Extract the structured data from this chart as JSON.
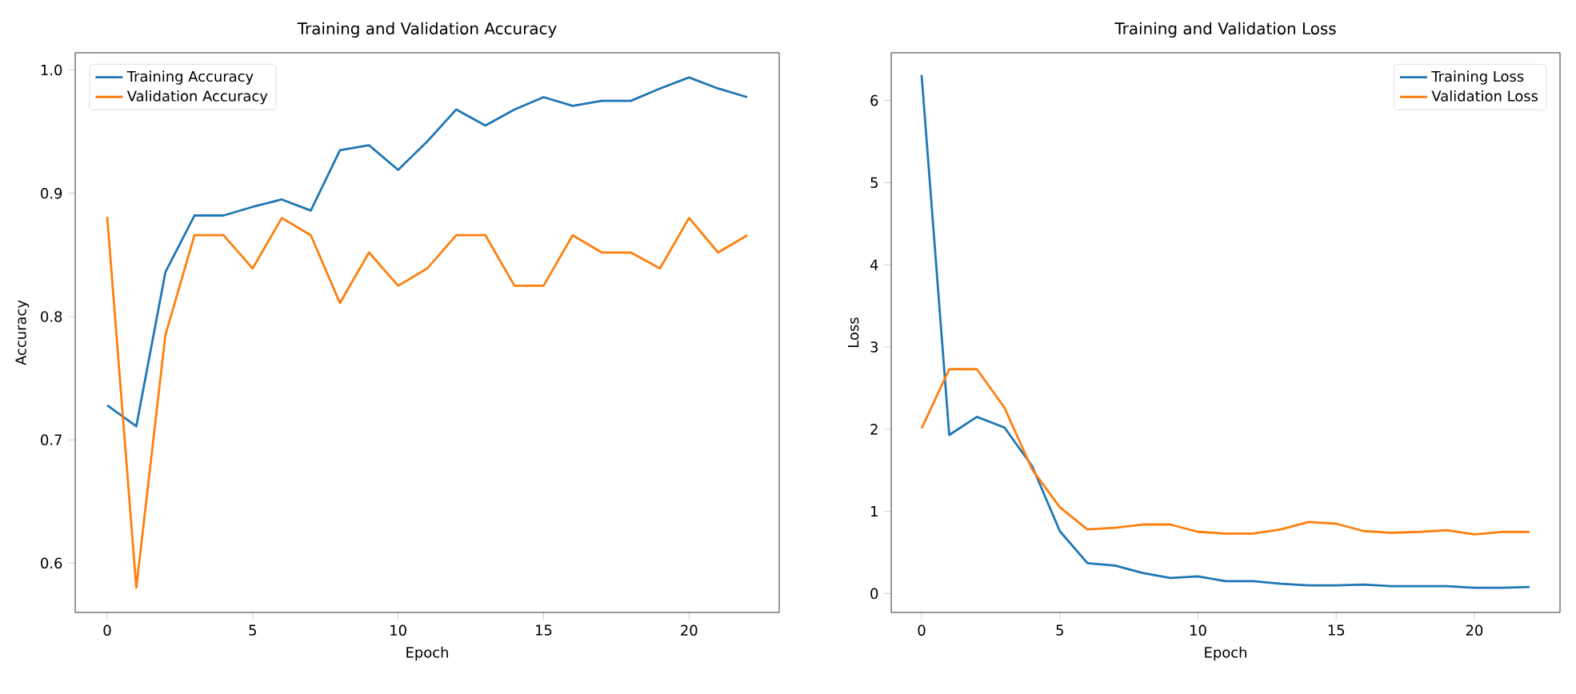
{
  "chart_data": [
    {
      "type": "line",
      "title": "Training and Validation Accuracy",
      "xlabel": "Epoch",
      "ylabel": "Accuracy",
      "x": [
        0,
        1,
        2,
        3,
        4,
        5,
        6,
        7,
        8,
        9,
        10,
        11,
        12,
        13,
        14,
        15,
        16,
        17,
        18,
        19,
        20,
        21,
        22
      ],
      "series": [
        {
          "name": "Training Accuracy",
          "color": "#1f77b4",
          "values": [
            0.728,
            0.711,
            0.836,
            0.882,
            0.882,
            0.889,
            0.895,
            0.886,
            0.935,
            0.939,
            0.919,
            0.942,
            0.968,
            0.955,
            0.968,
            0.978,
            0.971,
            0.975,
            0.975,
            0.985,
            0.994,
            0.985,
            0.978
          ]
        },
        {
          "name": "Validation Accuracy",
          "color": "#ff7f0e",
          "values": [
            0.881,
            0.58,
            0.785,
            0.866,
            0.866,
            0.839,
            0.88,
            0.866,
            0.811,
            0.852,
            0.825,
            0.839,
            0.866,
            0.866,
            0.825,
            0.825,
            0.866,
            0.852,
            0.852,
            0.839,
            0.88,
            0.852,
            0.866
          ]
        }
      ],
      "xlim": [
        -1.1,
        23.1
      ],
      "ylim": [
        0.56,
        1.014
      ],
      "xticks": [
        0,
        5,
        10,
        15,
        20
      ],
      "yticks": [
        0.6,
        0.7,
        0.8,
        0.9,
        {
          "value": 1.0,
          "label": "1.0"
        }
      ],
      "legend": "top left"
    },
    {
      "type": "line",
      "title": "Training and Validation Loss",
      "xlabel": "Epoch",
      "ylabel": "Loss",
      "x": [
        0,
        1,
        2,
        3,
        4,
        5,
        6,
        7,
        8,
        9,
        10,
        11,
        12,
        13,
        14,
        15,
        16,
        17,
        18,
        19,
        20,
        21,
        22
      ],
      "series": [
        {
          "name": "Training Loss",
          "color": "#1f77b4",
          "values": [
            6.31,
            1.93,
            2.15,
            2.02,
            1.55,
            0.76,
            0.37,
            0.34,
            0.25,
            0.19,
            0.21,
            0.15,
            0.15,
            0.12,
            0.1,
            0.1,
            0.11,
            0.09,
            0.09,
            0.09,
            0.07,
            0.07,
            0.08
          ]
        },
        {
          "name": "Validation Loss",
          "color": "#ff7f0e",
          "values": [
            2.01,
            2.73,
            2.73,
            2.26,
            1.51,
            1.05,
            0.78,
            0.8,
            0.84,
            0.84,
            0.75,
            0.73,
            0.73,
            0.78,
            0.87,
            0.85,
            0.76,
            0.74,
            0.75,
            0.77,
            0.72,
            0.75,
            0.75
          ]
        }
      ],
      "xlim": [
        -1.1,
        23.1
      ],
      "ylim": [
        -0.23,
        6.58
      ],
      "xticks": [
        0,
        5,
        10,
        15,
        20
      ],
      "yticks": [
        0,
        1,
        2,
        3,
        4,
        5,
        6
      ],
      "legend": "top right"
    }
  ]
}
